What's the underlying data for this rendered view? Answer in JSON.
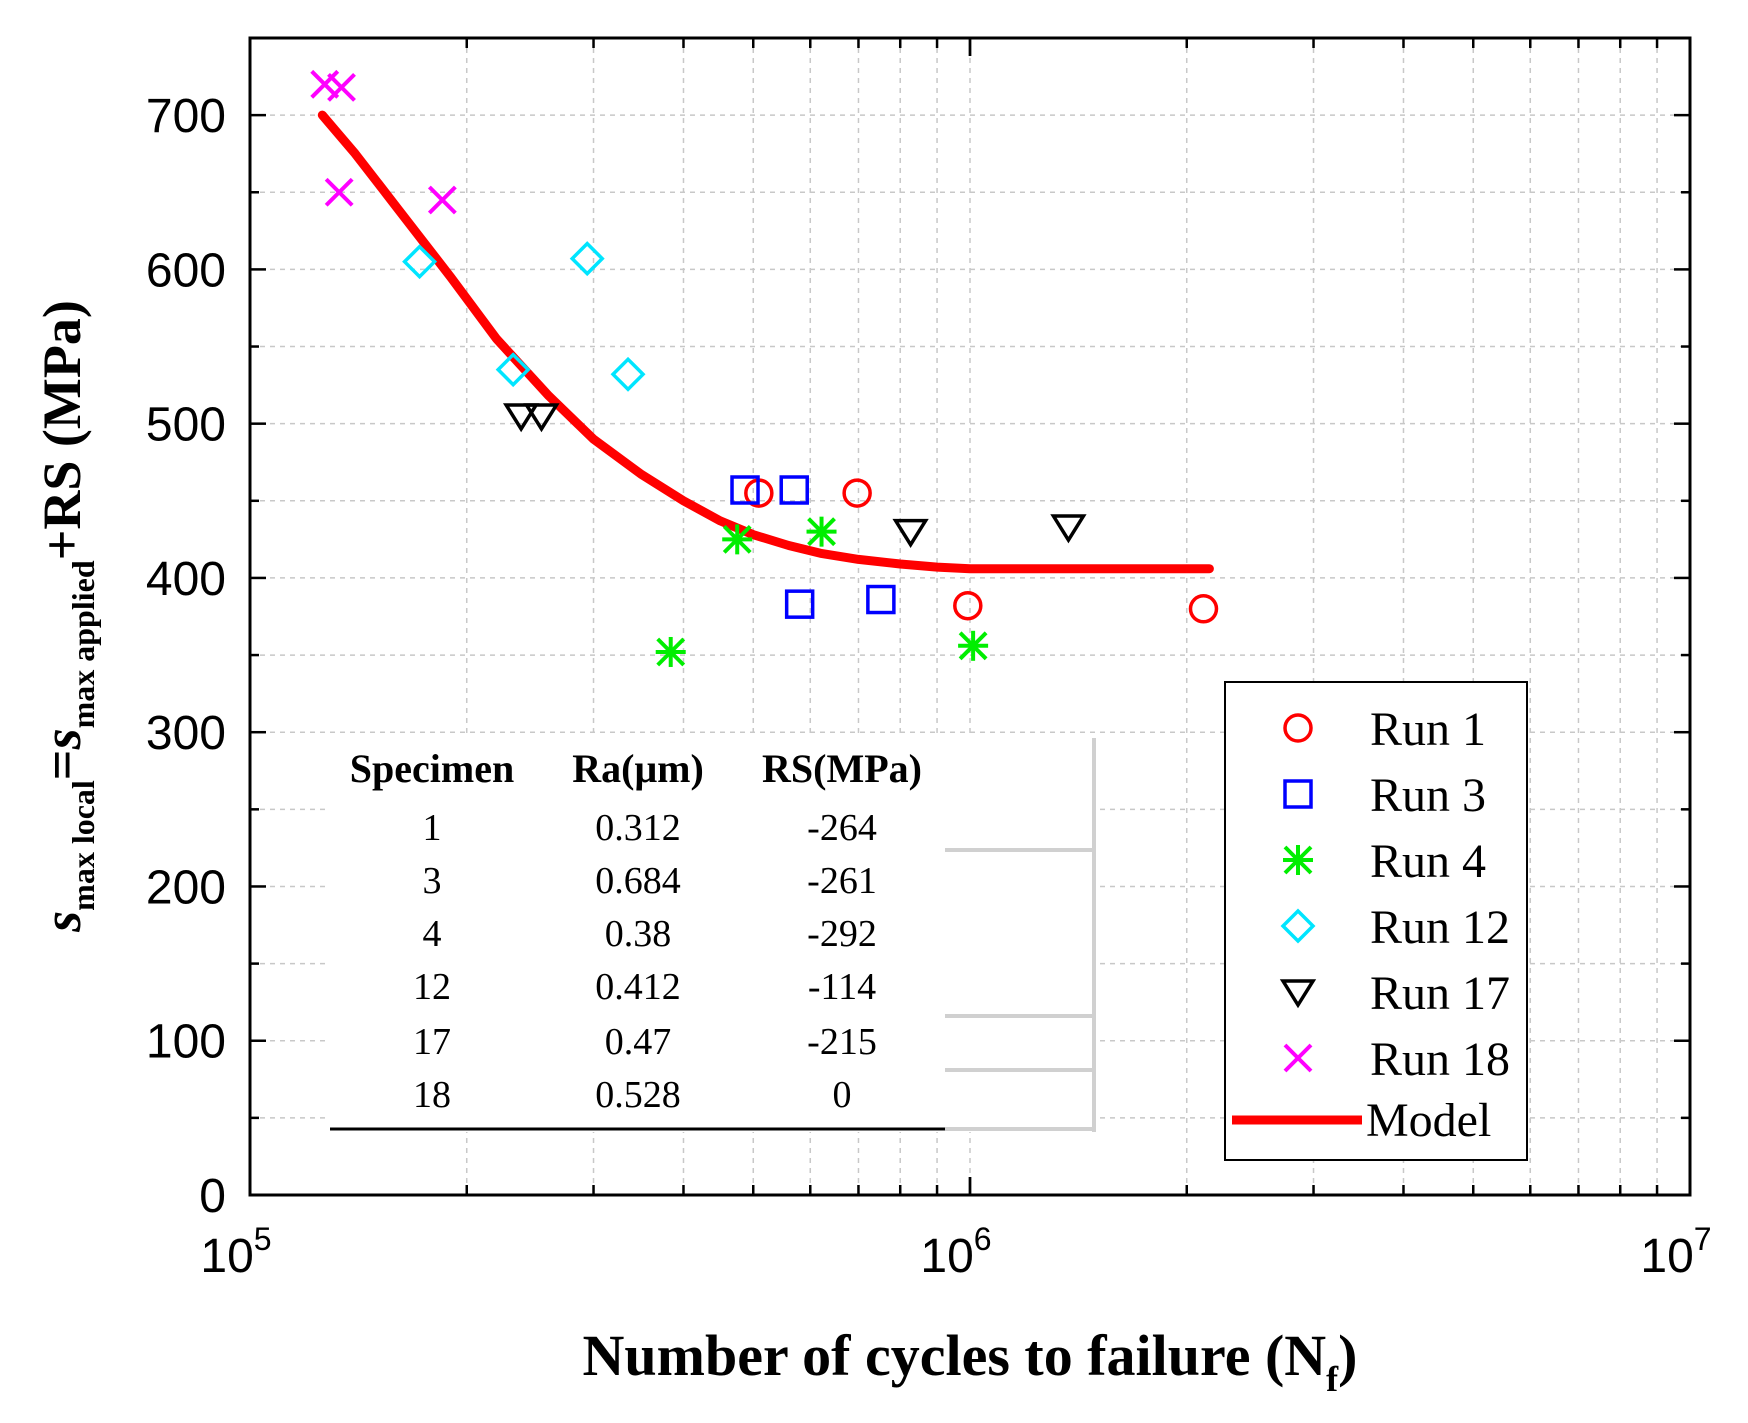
{
  "chart_data": {
    "type": "scatter",
    "xscale": "log",
    "xlim": [
      100000,
      10000000
    ],
    "ylim": [
      0,
      750
    ],
    "xlabel": "Number of cycles to failure (N",
    "xlabel_sub": "f",
    "xlabel_close": ")",
    "ylabel": {
      "s1": "s",
      "sub1": "max local",
      "eq": "=",
      "s2": "s",
      "sub2": "max applied",
      "tail": "+RS (MPa)"
    },
    "yticks": [
      0,
      100,
      200,
      300,
      400,
      500,
      600,
      700
    ],
    "xticks": [
      {
        "value": 100000,
        "base": "10",
        "exp": "5"
      },
      {
        "value": 1000000,
        "base": "10",
        "exp": "6"
      },
      {
        "value": 10000000,
        "base": "10",
        "exp": "7"
      }
    ],
    "grid": true,
    "legend_position": "bottom-right",
    "series": [
      {
        "name": "Run 1",
        "marker": "circle",
        "color": "#ff0000",
        "points": [
          [
            509000,
            455
          ],
          [
            697000,
            455
          ],
          [
            993000,
            382
          ],
          [
            2110000,
            380
          ]
        ]
      },
      {
        "name": "Run 3",
        "marker": "square",
        "color": "#0000ff",
        "points": [
          [
            487000,
            457
          ],
          [
            570000,
            457
          ],
          [
            580000,
            383
          ],
          [
            752000,
            386
          ]
        ]
      },
      {
        "name": "Run 4",
        "marker": "asterisk",
        "color": "#00ee00",
        "points": [
          [
            384000,
            352
          ],
          [
            475000,
            425
          ],
          [
            622000,
            430
          ],
          [
            1010000,
            356
          ]
        ]
      },
      {
        "name": "Run 12",
        "marker": "diamond",
        "color": "#00e5ff",
        "points": [
          [
            172000,
            605
          ],
          [
            232000,
            535
          ],
          [
            294000,
            607
          ],
          [
            335000,
            532
          ]
        ]
      },
      {
        "name": "Run 17",
        "marker": "triangle-down",
        "color": "#000000",
        "points": [
          [
            238000,
            505
          ],
          [
            254000,
            505
          ],
          [
            827000,
            430
          ],
          [
            1370000,
            433
          ]
        ]
      },
      {
        "name": "Run 18",
        "marker": "x",
        "color": "#ff00ff",
        "points": [
          [
            127000,
            720
          ],
          [
            134000,
            718
          ],
          [
            133000,
            650
          ],
          [
            185000,
            645
          ]
        ]
      }
    ],
    "model": {
      "name": "Model",
      "color": "#ff0000",
      "x": [
        126000,
        140000,
        160000,
        190000,
        220000,
        260000,
        300000,
        350000,
        400000,
        450000,
        500000,
        560000,
        620000,
        700000,
        800000,
        900000,
        1000000,
        1500000,
        2150000
      ],
      "y": [
        700,
        675,
        640,
        595,
        555,
        518,
        490,
        467,
        450,
        437,
        428,
        421,
        416,
        412,
        409,
        407,
        406,
        406,
        406
      ]
    }
  },
  "table": {
    "headers": [
      "Specimen",
      "Ra(μm)",
      "RS(MPa)"
    ],
    "rows": [
      [
        "1",
        "0.312",
        "-264"
      ],
      [
        "3",
        "0.684",
        "-261"
      ],
      [
        "4",
        "0.38",
        "-292"
      ],
      [
        "12",
        "0.412",
        "-114"
      ],
      [
        "17",
        "0.47",
        "-215"
      ],
      [
        "18",
        "0.528",
        "0"
      ]
    ]
  }
}
